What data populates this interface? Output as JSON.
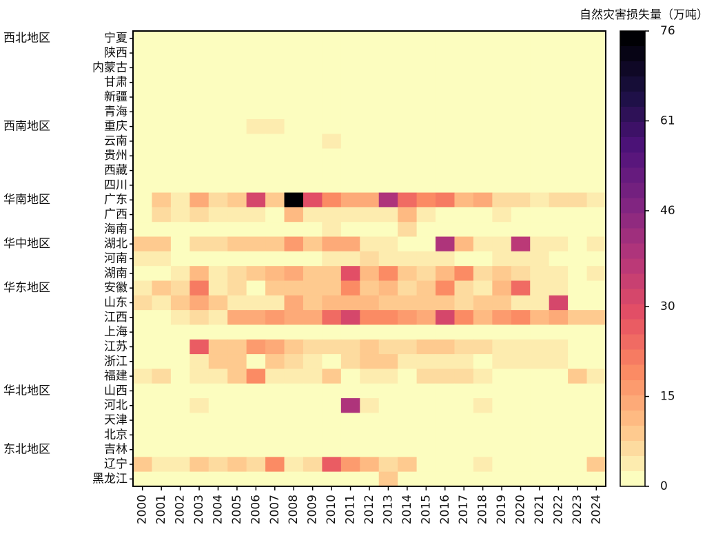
{
  "chart_data": {
    "type": "heatmap",
    "colorbar_title": "自然灾害损失量（万吨）",
    "categories": [
      "2000",
      "2001",
      "2002",
      "2003",
      "2004",
      "2005",
      "2006",
      "2007",
      "2008",
      "2009",
      "2010",
      "2011",
      "2012",
      "2013",
      "2014",
      "2015",
      "2016",
      "2017",
      "2018",
      "2019",
      "2020",
      "2021",
      "2022",
      "2023",
      "2024"
    ],
    "rows": [
      "宁夏",
      "陕西",
      "内蒙古",
      "甘肃",
      "新疆",
      "青海",
      "重庆",
      "云南",
      "贵州",
      "西藏",
      "四川",
      "广东",
      "广西",
      "海南",
      "湖北",
      "河南",
      "湖南",
      "安徽",
      "山东",
      "江西",
      "上海",
      "江苏",
      "浙江",
      "福建",
      "山西",
      "河北",
      "天津",
      "北京",
      "吉林",
      "辽宁",
      "黑龙江"
    ],
    "row_groups": [
      "西北地区",
      null,
      null,
      null,
      null,
      null,
      "西南地区",
      null,
      null,
      null,
      null,
      "华南地区",
      null,
      null,
      "华中地区",
      null,
      null,
      "华东地区",
      null,
      null,
      null,
      null,
      null,
      null,
      "华北地区",
      null,
      null,
      null,
      "东北地区",
      null,
      null
    ],
    "values": [
      [
        0,
        0,
        0,
        0,
        0,
        0,
        0,
        0,
        0,
        0,
        0,
        0,
        0,
        0,
        0,
        0,
        0,
        0,
        0,
        0,
        0,
        0,
        0,
        0,
        0
      ],
      [
        0,
        0,
        0,
        0,
        0,
        0,
        0,
        0,
        0,
        0,
        0,
        0,
        0,
        0,
        0,
        0,
        0,
        0,
        0,
        0,
        0,
        0,
        0,
        0,
        0
      ],
      [
        0,
        0,
        0,
        0,
        0,
        0,
        0,
        0,
        0,
        0,
        0,
        0,
        0,
        0,
        0,
        0,
        0,
        0,
        0,
        0,
        0,
        0,
        0,
        0,
        0
      ],
      [
        0,
        0,
        0,
        0,
        0,
        0,
        0,
        0,
        0,
        0,
        0,
        0,
        0,
        0,
        0,
        0,
        0,
        0,
        0,
        0,
        0,
        0,
        0,
        0,
        0
      ],
      [
        0,
        0,
        0,
        0,
        0,
        0,
        0,
        0,
        0,
        0,
        0,
        0,
        0,
        0,
        0,
        0,
        0,
        0,
        0,
        0,
        0,
        0,
        0,
        0,
        0
      ],
      [
        0,
        0,
        0,
        0,
        0,
        0,
        0,
        0,
        0,
        0,
        0,
        0,
        0,
        0,
        0,
        0,
        0,
        0,
        0,
        0,
        0,
        0,
        0,
        0,
        0
      ],
      [
        0,
        0,
        0,
        0,
        0,
        0,
        3,
        3,
        0,
        0,
        0,
        0,
        0,
        0,
        0,
        0,
        0,
        0,
        0,
        0,
        0,
        0,
        0,
        0,
        0
      ],
      [
        0,
        0,
        0,
        0,
        0,
        0,
        0,
        0,
        0,
        0,
        4,
        2,
        2,
        2,
        0,
        0,
        0,
        0,
        0,
        0,
        0,
        0,
        0,
        0,
        0
      ],
      [
        0,
        0,
        0,
        0,
        0,
        0,
        0,
        0,
        0,
        0,
        0,
        0,
        0,
        0,
        0,
        0,
        0,
        0,
        0,
        0,
        0,
        0,
        0,
        0,
        0
      ],
      [
        0,
        0,
        0,
        0,
        0,
        0,
        0,
        0,
        0,
        0,
        0,
        0,
        0,
        0,
        0,
        0,
        0,
        0,
        0,
        0,
        0,
        0,
        0,
        0,
        0
      ],
      [
        0,
        0,
        0,
        0,
        0,
        0,
        2,
        2,
        2,
        2,
        2,
        2,
        1,
        0,
        0,
        0,
        0,
        0,
        2,
        0,
        2,
        0,
        0,
        0,
        0
      ],
      [
        1,
        8,
        5,
        15,
        6,
        8,
        32,
        10,
        76,
        28,
        18,
        15,
        15,
        40,
        25,
        20,
        22,
        12,
        14,
        6,
        6,
        4,
        6,
        6,
        3
      ],
      [
        1,
        6,
        4,
        6,
        4,
        4,
        3,
        2,
        12,
        3,
        5,
        4,
        3,
        3,
        12,
        3,
        1,
        1,
        2,
        4,
        1,
        1,
        1,
        1,
        1
      ],
      [
        2,
        0,
        0,
        0,
        0,
        0,
        0,
        0,
        0,
        0,
        5,
        0,
        0,
        0,
        6,
        0,
        0,
        0,
        0,
        0,
        0,
        0,
        0,
        0,
        2
      ],
      [
        8,
        8,
        1,
        6,
        6,
        8,
        8,
        10,
        16,
        10,
        15,
        15,
        3,
        3,
        1,
        2,
        38,
        12,
        3,
        4,
        36,
        3,
        3,
        1,
        5
      ],
      [
        3,
        3,
        1,
        1,
        1,
        1,
        1,
        1,
        1,
        1,
        3,
        3,
        6,
        4,
        4,
        3,
        3,
        2,
        2,
        3,
        4,
        5,
        1,
        1,
        1
      ],
      [
        1,
        1,
        4,
        12,
        5,
        6,
        8,
        12,
        14,
        10,
        10,
        30,
        12,
        18,
        10,
        7,
        12,
        18,
        6,
        10,
        6,
        5,
        5,
        1,
        3
      ],
      [
        4,
        8,
        6,
        22,
        4,
        6,
        1,
        10,
        10,
        8,
        10,
        20,
        8,
        12,
        6,
        8,
        18,
        6,
        4,
        12,
        25,
        3,
        3,
        1,
        1
      ],
      [
        6,
        4,
        8,
        14,
        8,
        3,
        3,
        5,
        14,
        8,
        12,
        12,
        12,
        10,
        10,
        8,
        8,
        6,
        8,
        8,
        3,
        3,
        32,
        1,
        1
      ],
      [
        1,
        1,
        4,
        6,
        4,
        14,
        14,
        16,
        14,
        14,
        24,
        32,
        18,
        18,
        16,
        14,
        32,
        18,
        12,
        16,
        18,
        12,
        14,
        10,
        10
      ],
      [
        0,
        0,
        0,
        0,
        0,
        0,
        0,
        0,
        0,
        0,
        0,
        0,
        0,
        0,
        0,
        0,
        0,
        0,
        0,
        0,
        0,
        0,
        0,
        0,
        0
      ],
      [
        2,
        1,
        1,
        26,
        10,
        10,
        16,
        14,
        10,
        6,
        6,
        6,
        10,
        6,
        6,
        8,
        8,
        6,
        6,
        4,
        4,
        4,
        4,
        1,
        1
      ],
      [
        1,
        1,
        1,
        4,
        8,
        10,
        2,
        8,
        6,
        4,
        1,
        6,
        8,
        8,
        4,
        4,
        4,
        4,
        1,
        4,
        4,
        4,
        4,
        1,
        1
      ],
      [
        3,
        6,
        1,
        3,
        3,
        10,
        20,
        4,
        4,
        4,
        8,
        2,
        4,
        4,
        2,
        6,
        6,
        6,
        4,
        1,
        1,
        1,
        1,
        8,
        3
      ],
      [
        0,
        0,
        0,
        0,
        0,
        0,
        0,
        0,
        0,
        0,
        0,
        0,
        0,
        0,
        0,
        0,
        0,
        0,
        0,
        0,
        0,
        0,
        0,
        0,
        0
      ],
      [
        0,
        0,
        0,
        4,
        0,
        0,
        0,
        0,
        0,
        0,
        0,
        40,
        3,
        0,
        0,
        0,
        0,
        0,
        4,
        0,
        0,
        0,
        0,
        0,
        0
      ],
      [
        0,
        0,
        0,
        0,
        0,
        0,
        0,
        0,
        0,
        0,
        0,
        0,
        0,
        0,
        0,
        0,
        0,
        0,
        0,
        0,
        0,
        0,
        0,
        0,
        0
      ],
      [
        0,
        0,
        0,
        0,
        0,
        0,
        0,
        0,
        0,
        0,
        0,
        0,
        0,
        0,
        0,
        0,
        0,
        0,
        0,
        0,
        0,
        0,
        0,
        0,
        0
      ],
      [
        0,
        0,
        0,
        0,
        0,
        0,
        0,
        0,
        0,
        0,
        0,
        0,
        0,
        0,
        0,
        0,
        0,
        0,
        0,
        0,
        0,
        0,
        0,
        0,
        0
      ],
      [
        8,
        3,
        3,
        8,
        6,
        8,
        6,
        20,
        4,
        6,
        26,
        16,
        12,
        6,
        8,
        2,
        1,
        1,
        4,
        1,
        1,
        1,
        1,
        1,
        10
      ],
      [
        0,
        0,
        0,
        0,
        0,
        0,
        0,
        0,
        0,
        0,
        0,
        0,
        0,
        8,
        0,
        0,
        0,
        0,
        0,
        0,
        0,
        0,
        0,
        2,
        0
      ]
    ],
    "colormap": "magma_r",
    "zlim": [
      0,
      76
    ],
    "zticks": [
      0,
      15,
      30,
      46,
      61,
      76
    ]
  }
}
